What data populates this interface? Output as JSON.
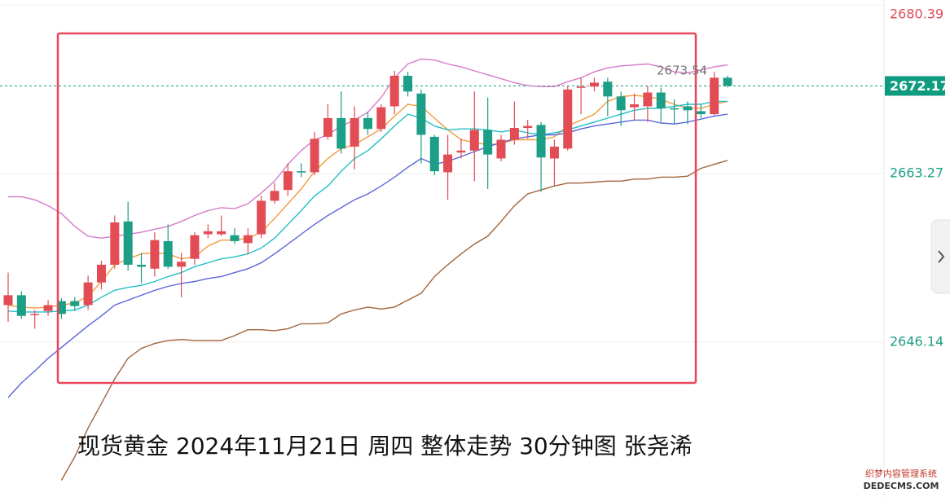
{
  "chart_data": {
    "type": "candlestick",
    "ylim": [
      2630.4,
      2680.9
    ],
    "yticks": [
      2680.39,
      2663.27,
      2646.14
    ],
    "grid": true,
    "up_color": "#e24c55",
    "down_color": "#1d9e86",
    "open": [
      2649.9,
      2650.9,
      2648.9,
      2649.3,
      2650.3,
      2650.3,
      2649.9,
      2652.2,
      2654.0,
      2658.4,
      2654.0,
      2653.6,
      2656.4,
      2653.8,
      2654.6,
      2657.1,
      2657.1,
      2657.0,
      2656.2,
      2657.1,
      2660.5,
      2661.6,
      2663.5,
      2663.4,
      2667.0,
      2668.9,
      2666.0,
      2668.9,
      2667.8,
      2670.1,
      2673.2,
      2671.4,
      2667.0,
      2663.4,
      2665.4,
      2665.6,
      2667.7,
      2664.8,
      2666.7,
      2667.9,
      2668.2,
      2664.8,
      2665.8,
      2672.0,
      2672.1,
      2672.6,
      2671.1,
      2670.0,
      2670.1,
      2671.5,
      2669.9,
      2670.1,
      2669.6,
      2669.3,
      2673.0
    ],
    "high": [
      2653.2,
      2651.3,
      2649.4,
      2650.4,
      2650.6,
      2650.7,
      2652.9,
      2654.4,
      2659.0,
      2660.4,
      2655.2,
      2657.3,
      2658.1,
      2655.2,
      2657.3,
      2658.1,
      2659.0,
      2657.7,
      2657.7,
      2661.0,
      2662.3,
      2664.3,
      2664.3,
      2667.5,
      2670.3,
      2671.6,
      2670.1,
      2669.5,
      2670.3,
      2673.7,
      2673.6,
      2671.8,
      2667.2,
      2667.2,
      2666.8,
      2671.6,
      2671.0,
      2667.2,
      2670.6,
      2668.7,
      2668.5,
      2666.7,
      2672.2,
      2673.0,
      2673.0,
      2673.0,
      2671.6,
      2671.4,
      2672.2,
      2672.0,
      2670.8,
      2670.6,
      2670.3,
      2673.6,
      2673.2
    ],
    "low": [
      2648.2,
      2648.5,
      2647.5,
      2648.8,
      2648.5,
      2649.3,
      2649.4,
      2651.5,
      2653.6,
      2653.4,
      2652.1,
      2652.8,
      2653.6,
      2650.7,
      2654.0,
      2656.7,
      2656.9,
      2656.1,
      2655.1,
      2656.7,
      2660.2,
      2661.0,
      2662.9,
      2663.1,
      2666.7,
      2665.3,
      2663.7,
      2667.2,
      2667.5,
      2669.3,
      2671.1,
      2664.3,
      2663.1,
      2660.6,
      2664.8,
      2662.5,
      2661.7,
      2664.5,
      2666.2,
      2666.8,
      2661.4,
      2662.0,
      2665.6,
      2669.3,
      2671.6,
      2669.1,
      2668.1,
      2668.7,
      2668.5,
      2668.5,
      2668.3,
      2668.3,
      2668.9,
      2669.2,
      2672.0
    ],
    "close": [
      2650.9,
      2648.8,
      2649.0,
      2649.9,
      2649.0,
      2649.8,
      2652.2,
      2654.0,
      2658.3,
      2654.0,
      2653.8,
      2656.5,
      2653.8,
      2654.3,
      2657.0,
      2657.4,
      2657.4,
      2656.4,
      2657.0,
      2660.5,
      2661.5,
      2663.5,
      2663.4,
      2666.8,
      2668.9,
      2665.8,
      2668.9,
      2667.8,
      2670.0,
      2673.2,
      2671.6,
      2667.2,
      2663.5,
      2665.2,
      2665.6,
      2667.7,
      2665.2,
      2666.7,
      2667.9,
      2668.1,
      2664.9,
      2666.0,
      2671.8,
      2672.1,
      2672.5,
      2671.1,
      2669.7,
      2670.3,
      2671.5,
      2669.9,
      2669.8,
      2669.7,
      2669.3,
      2673.0,
      2672.2
    ],
    "series": [
      {
        "color": "#d77acb",
        "values": [
          2660.9,
          2660.9,
          2660.6,
          2660.0,
          2659.2,
          2657.9,
          2656.9,
          2656.7,
          2656.9,
          2657.1,
          2657.3,
          2657.6,
          2657.9,
          2658.4,
          2659.0,
          2659.5,
          2659.8,
          2659.7,
          2660.2,
          2661.3,
          2662.5,
          2664.2,
          2665.6,
          2666.7,
          2667.2,
          2668.1,
          2668.7,
          2669.5,
          2671.0,
          2673.0,
          2674.4,
          2674.9,
          2674.8,
          2674.4,
          2674.1,
          2673.7,
          2673.3,
          2672.9,
          2672.5,
          2672.2,
          2672.1,
          2672.1,
          2672.6,
          2673.0,
          2673.6,
          2674.0,
          2674.2,
          2674.3,
          2674.4,
          2674.1,
          2673.6,
          2673.5,
          2673.8,
          2674.1,
          2674.3
        ]
      },
      {
        "color": "#f29b3c",
        "values": [
          2649.9,
          2649.7,
          2649.6,
          2649.7,
          2649.9,
          2650.1,
          2650.8,
          2652.3,
          2654.0,
          2654.6,
          2655.1,
          2655.2,
          2655.1,
          2654.6,
          2654.8,
          2655.9,
          2656.5,
          2656.5,
          2656.7,
          2657.3,
          2658.7,
          2660.2,
          2661.7,
          2663.5,
          2664.8,
          2665.8,
          2666.2,
          2667.0,
          2667.8,
          2669.1,
          2670.3,
          2670.1,
          2668.9,
          2667.7,
          2666.7,
          2666.4,
          2666.2,
          2666.3,
          2666.7,
          2666.7,
          2666.7,
          2667.0,
          2668.1,
          2668.7,
          2669.3,
          2670.6,
          2671.1,
          2671.2,
          2671.1,
          2670.8,
          2670.3,
          2669.9,
          2669.9,
          2670.3,
          2670.6
        ]
      },
      {
        "color": "#22bfc6",
        "values": [
          2649.3,
          2649.2,
          2649.2,
          2649.2,
          2649.3,
          2649.4,
          2649.9,
          2650.7,
          2651.4,
          2651.7,
          2651.9,
          2652.3,
          2652.8,
          2653.2,
          2653.8,
          2654.2,
          2654.6,
          2654.8,
          2655.1,
          2655.7,
          2656.7,
          2658.1,
          2659.5,
          2661.0,
          2662.0,
          2663.5,
          2664.8,
          2665.6,
          2666.8,
          2668.1,
          2669.3,
          2668.9,
          2668.1,
          2667.7,
          2667.8,
          2667.8,
          2667.7,
          2667.5,
          2667.7,
          2667.4,
          2667.2,
          2667.4,
          2667.7,
          2668.1,
          2668.5,
          2668.9,
          2669.3,
          2669.7,
          2669.9,
          2669.9,
          2670.1,
          2670.3,
          2670.3,
          2670.6,
          2670.6
        ]
      },
      {
        "color": "#5b66d9",
        "values": [
          2640.5,
          2642.0,
          2643.2,
          2644.5,
          2645.6,
          2646.7,
          2647.8,
          2648.8,
          2649.9,
          2650.4,
          2650.9,
          2651.4,
          2651.8,
          2652.1,
          2652.3,
          2652.6,
          2652.8,
          2653.2,
          2653.6,
          2654.2,
          2655.1,
          2656.1,
          2657.1,
          2658.1,
          2659.0,
          2659.8,
          2660.6,
          2661.2,
          2662.0,
          2662.9,
          2663.9,
          2664.8,
          2664.2,
          2664.5,
          2665.0,
          2665.5,
          2666.0,
          2666.4,
          2666.8,
          2667.0,
          2667.2,
          2667.2,
          2667.4,
          2667.8,
          2668.1,
          2668.3,
          2668.5,
          2668.7,
          2668.7,
          2668.4,
          2668.3,
          2668.5,
          2668.8,
          2669.1,
          2669.3
        ]
      },
      {
        "color": "#a2643a",
        "values": [
          null,
          null,
          null,
          null,
          2632.1,
          2634.5,
          2637.4,
          2639.9,
          2642.4,
          2644.5,
          2645.5,
          2646.0,
          2646.3,
          2646.4,
          2646.3,
          2646.3,
          2646.3,
          2646.8,
          2647.4,
          2647.4,
          2647.3,
          2647.5,
          2648.0,
          2648.0,
          2648.1,
          2649.0,
          2649.4,
          2649.7,
          2649.5,
          2649.7,
          2650.4,
          2651.1,
          2652.8,
          2654.0,
          2655.1,
          2656.1,
          2656.9,
          2658.4,
          2660.0,
          2661.2,
          2661.6,
          2662.0,
          2662.3,
          2662.3,
          2662.4,
          2662.5,
          2662.5,
          2662.7,
          2662.7,
          2662.9,
          2662.9,
          2663.0,
          2663.8,
          2664.2,
          2664.6
        ]
      }
    ],
    "last_price": 2672.17,
    "last_price_color": "#0f9b80",
    "high_marker": 2673.54,
    "caption": "现货黄金  2024年11月21日 周四 整体走势 30分钟图 张尧浠",
    "watermark": [
      "织梦内容管理系统",
      "DEDECMS.COM"
    ]
  }
}
